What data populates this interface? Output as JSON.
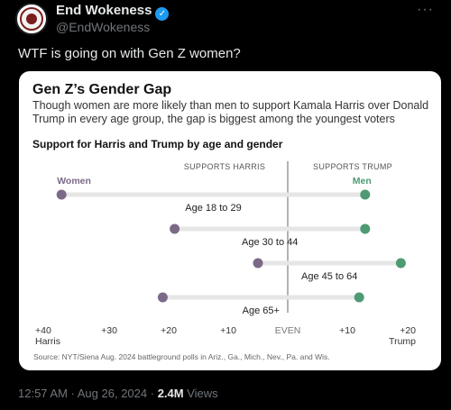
{
  "tweet": {
    "display_name": "End Wokeness",
    "handle": "@EndWokeness",
    "text": "WTF is going on with Gen Z women?",
    "timestamp": "12:57 AM · Aug 26, 2024",
    "separator": "·",
    "views_count": "2.4M",
    "views_label": "Views",
    "verified_mark": "✓",
    "more_icon": "···"
  },
  "card": {
    "title": "Gen Z’s Gender Gap",
    "subtitle": "Though women are more likely than men to support Kamala Harris over Donald Trump in every age group, the gap is biggest among the youngest voters",
    "chart_heading": "Support for Harris and Trump by age and gender",
    "source": "Source: NYT/Siena Aug. 2024 battleground polls in Ariz., Ga., Mich., Nev., Pa. and Wis."
  },
  "chart_data": {
    "type": "dumbbell",
    "left_header": "SUPPORTS HARRIS",
    "right_header": "SUPPORTS TRUMP",
    "women_label": "Women",
    "men_label": "Men",
    "xlim": [
      -40,
      20
    ],
    "ticks": [
      {
        "value": -40,
        "label": "+40",
        "sublabel": "Harris"
      },
      {
        "value": -30,
        "label": "+30",
        "sublabel": ""
      },
      {
        "value": -20,
        "label": "+20",
        "sublabel": ""
      },
      {
        "value": -10,
        "label": "+10",
        "sublabel": ""
      },
      {
        "value": 0,
        "label": "EVEN",
        "sublabel": ""
      },
      {
        "value": 10,
        "label": "+10",
        "sublabel": ""
      },
      {
        "value": 20,
        "label": "+20",
        "sublabel": "Trump"
      }
    ],
    "rows": [
      {
        "label": "Age 18 to 29",
        "women": -38,
        "men": 13
      },
      {
        "label": "Age 30 to 44",
        "women": -19,
        "men": 13
      },
      {
        "label": "Age 45 to 64",
        "women": -5,
        "men": 19
      },
      {
        "label": "Age 65+",
        "women": -21,
        "men": 12
      }
    ],
    "colors": {
      "women": "#7c6987",
      "men": "#4e9a73",
      "bar": "#e6e6e6",
      "even_line": "#666666"
    }
  }
}
